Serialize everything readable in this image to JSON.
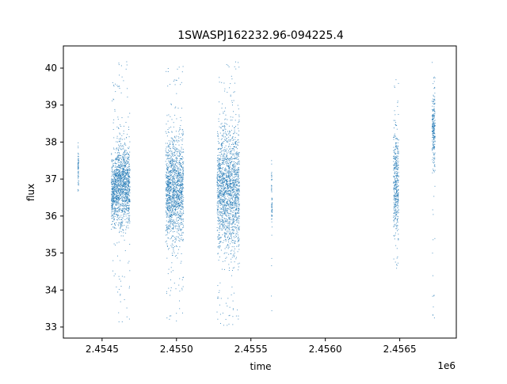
{
  "chart_data": {
    "type": "scatter",
    "title": "1SWASPJ162232.96-094225.4",
    "xlabel": "time",
    "ylabel": "flux",
    "x_offset_label": "1e6",
    "xlim": [
      2454240,
      2456880
    ],
    "ylim": [
      32.7,
      40.6
    ],
    "x_ticks": [
      {
        "value": 2454500,
        "label": "2.4545"
      },
      {
        "value": 2455000,
        "label": "2.4550"
      },
      {
        "value": 2455500,
        "label": "2.4555"
      },
      {
        "value": 2456000,
        "label": "2.4560"
      },
      {
        "value": 2456500,
        "label": "2.4565"
      }
    ],
    "y_ticks": [
      {
        "value": 33,
        "label": "33"
      },
      {
        "value": 34,
        "label": "34"
      },
      {
        "value": 35,
        "label": "35"
      },
      {
        "value": 36,
        "label": "36"
      },
      {
        "value": 37,
        "label": "37"
      },
      {
        "value": 38,
        "label": "38"
      },
      {
        "value": 39,
        "label": "39"
      },
      {
        "value": 40,
        "label": "40"
      }
    ],
    "grid": false,
    "legend": "none",
    "marker_color": "#1f77b4",
    "series": [
      {
        "clusters": [
          {
            "x_range": [
              2454335,
              2454340
            ],
            "y_core": [
              36.6,
              37.9
            ],
            "y_outer": [
              36.5,
              38.0
            ]
          },
          {
            "x_range": [
              2454560,
              2454585
            ],
            "y_core": [
              35.7,
              37.6
            ],
            "y_outer": [
              34.3,
              39.7
            ]
          },
          {
            "x_range": [
              2454585,
              2454685
            ],
            "y_core": [
              35.7,
              38.0
            ],
            "y_outer": [
              33.1,
              40.2
            ]
          },
          {
            "x_range": [
              2454925,
              2455045
            ],
            "y_core": [
              35.3,
              38.2
            ],
            "y_outer": [
              33.0,
              40.2
            ]
          },
          {
            "x_range": [
              2455270,
              2455420
            ],
            "y_core": [
              35.0,
              38.5
            ],
            "y_outer": [
              33.0,
              40.2
            ]
          },
          {
            "x_range": [
              2455635,
              2455640
            ],
            "y_core": [
              35.6,
              37.4
            ],
            "y_outer": [
              33.1,
              37.7
            ]
          },
          {
            "x_range": [
              2456455,
              2456490
            ],
            "y_core": [
              35.3,
              38.5
            ],
            "y_outer": [
              34.6,
              39.7
            ]
          },
          {
            "x_range": [
              2456715,
              2456735
            ],
            "y_core": [
              37.1,
              39.5
            ],
            "y_outer": [
              33.0,
              40.2
            ]
          }
        ]
      }
    ]
  }
}
